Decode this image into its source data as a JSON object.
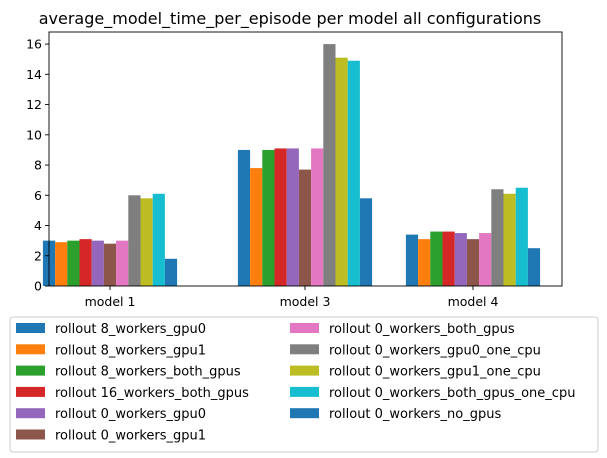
{
  "chart_data": {
    "type": "bar",
    "title": "average_model_time_per_episode per model all configurations",
    "xlabel": "",
    "ylabel": "",
    "categories": [
      "model 1",
      "model 3",
      "model 4"
    ],
    "ylim": [
      0,
      16.8
    ],
    "yticks": [
      "0",
      "2",
      "4",
      "6",
      "8",
      "10",
      "12",
      "14",
      "16"
    ],
    "grid": false,
    "legend_position": "bottom",
    "series": [
      {
        "name": "rollout 8_workers_gpu0",
        "color": "#1f77b4",
        "values": [
          3.0,
          9.0,
          3.4
        ]
      },
      {
        "name": "rollout 8_workers_gpu1",
        "color": "#ff7f0e",
        "values": [
          2.9,
          7.8,
          3.1
        ]
      },
      {
        "name": "rollout 8_workers_both_gpus",
        "color": "#2ca02c",
        "values": [
          3.0,
          9.0,
          3.6
        ]
      },
      {
        "name": "rollout 16_workers_both_gpus",
        "color": "#d62728",
        "values": [
          3.1,
          9.1,
          3.6
        ]
      },
      {
        "name": "rollout 0_workers_gpu0",
        "color": "#9467bd",
        "values": [
          3.0,
          9.1,
          3.5
        ]
      },
      {
        "name": "rollout 0_workers_gpu1",
        "color": "#8c564b",
        "values": [
          2.8,
          7.7,
          3.1
        ]
      },
      {
        "name": "rollout 0_workers_both_gpus",
        "color": "#e377c2",
        "values": [
          3.0,
          9.1,
          3.5
        ]
      },
      {
        "name": "rollout 0_workers_gpu0_one_cpu",
        "color": "#7f7f7f",
        "values": [
          6.0,
          16.0,
          6.4
        ]
      },
      {
        "name": "rollout 0_workers_gpu1_one_cpu",
        "color": "#bcbd22",
        "values": [
          5.8,
          15.1,
          6.1
        ]
      },
      {
        "name": "rollout 0_workers_both_gpus_one_cpu",
        "color": "#17becf",
        "values": [
          6.1,
          14.9,
          6.5
        ]
      },
      {
        "name": "rollout 0_workers_no_gpus",
        "color": "#1f77b4",
        "values": [
          1.8,
          5.8,
          2.5
        ]
      }
    ]
  }
}
